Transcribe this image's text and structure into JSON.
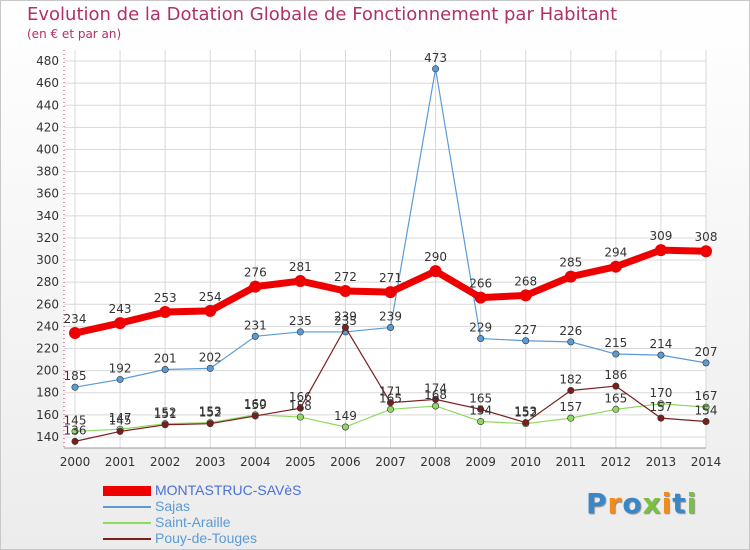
{
  "title": "Evolution de la Dotation Globale de Fonctionnement par Habitant",
  "subtitle": "(en € et par an)",
  "logo": {
    "text": "Proxiti",
    "letters": [
      "P",
      "r",
      "o",
      "x",
      "i",
      "t",
      "i"
    ],
    "colors": [
      "#3a87c8",
      "#f08c1e",
      "#3a87c8",
      "#7ac142",
      "#f08c1e",
      "#3a87c8",
      "#7ac142"
    ]
  },
  "chart_data": {
    "type": "line",
    "x": [
      "2000",
      "2001",
      "2002",
      "2003",
      "2004",
      "2005",
      "2006",
      "2007",
      "2008",
      "2009",
      "2010",
      "2011",
      "2012",
      "2013",
      "2014"
    ],
    "ylim": [
      130,
      490
    ],
    "yticks": [
      140,
      160,
      180,
      200,
      220,
      240,
      260,
      280,
      300,
      320,
      340,
      360,
      380,
      400,
      420,
      440,
      460,
      480
    ],
    "grid": true,
    "legend_position": "bottom-left",
    "series": [
      {
        "name": "MONTASTRUC-SAVèS",
        "color": "#ee0000",
        "values": [
          234,
          243,
          253,
          254,
          276,
          281,
          272,
          271,
          290,
          266,
          268,
          285,
          294,
          309,
          308
        ]
      },
      {
        "name": "Sajas",
        "color": "#5b9bd5",
        "values": [
          185,
          192,
          201,
          202,
          231,
          235,
          235,
          239,
          473,
          229,
          227,
          226,
          215,
          214,
          207
        ]
      },
      {
        "name": "Saint-Araille",
        "color": "#90d860",
        "values": [
          145,
          147,
          152,
          153,
          160,
          158,
          149,
          165,
          168,
          154,
          152,
          157,
          165,
          170,
          167
        ]
      },
      {
        "name": "Pouy-de-Touges",
        "color": "#7a1e1e",
        "values": [
          136,
          145,
          151,
          152,
          159,
          166,
          239,
          171,
          174,
          165,
          153,
          182,
          186,
          157,
          154
        ]
      }
    ]
  }
}
